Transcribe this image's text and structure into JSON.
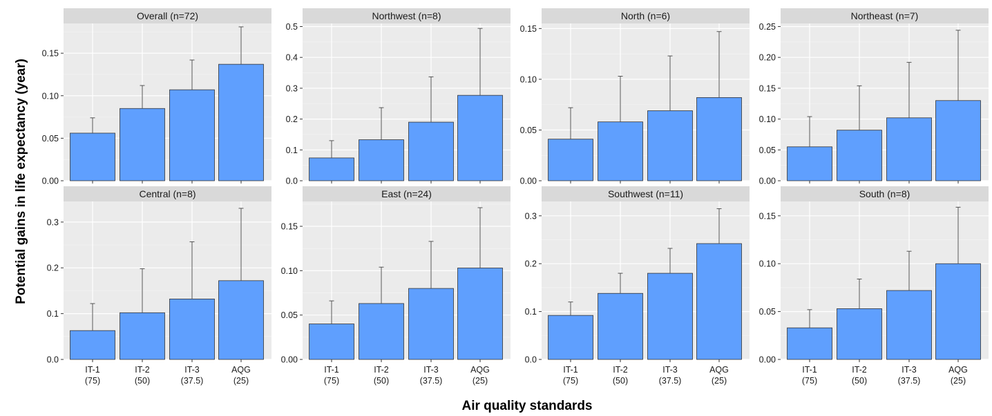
{
  "chart_data": {
    "type": "bar",
    "xlabel": "Air quality standards",
    "ylabel": "Potential gains in life expectancy (year)",
    "categories": [
      "IT-1 (75)",
      "IT-2 (50)",
      "IT-3 (37.5)",
      "AQG (25)"
    ],
    "category_lines": [
      [
        "IT-1",
        "(75)"
      ],
      [
        "IT-2",
        "(50)"
      ],
      [
        "IT-3",
        "(37.5)"
      ],
      [
        "AQG",
        "(25)"
      ]
    ],
    "bar_color": "#5f9ffe",
    "panels": [
      {
        "title": "Overall (n=72)",
        "ylim": [
          0,
          0.185
        ],
        "ticks": [
          0.0,
          0.05,
          0.1,
          0.15
        ],
        "tick_labels": [
          "0.00",
          "0.05",
          "0.10",
          "0.15"
        ],
        "values": [
          0.056,
          0.085,
          0.107,
          0.137
        ],
        "error_upper": [
          0.074,
          0.112,
          0.142,
          0.181
        ]
      },
      {
        "title": "Northwest (n=8)",
        "ylim": [
          0,
          0.51
        ],
        "ticks": [
          0.0,
          0.1,
          0.2,
          0.3,
          0.4,
          0.5
        ],
        "tick_labels": [
          "0.0",
          "0.1",
          "0.2",
          "0.3",
          "0.4",
          "0.5"
        ],
        "values": [
          0.074,
          0.133,
          0.19,
          0.277
        ],
        "error_upper": [
          0.13,
          0.237,
          0.337,
          0.494
        ]
      },
      {
        "title": "North (n=6)",
        "ylim": [
          0,
          0.155
        ],
        "ticks": [
          0.0,
          0.05,
          0.1,
          0.15
        ],
        "tick_labels": [
          "0.00",
          "0.05",
          "0.10",
          "0.15"
        ],
        "values": [
          0.041,
          0.058,
          0.069,
          0.082
        ],
        "error_upper": [
          0.072,
          0.103,
          0.123,
          0.147
        ]
      },
      {
        "title": "Northeast (n=7)",
        "ylim": [
          0,
          0.255
        ],
        "ticks": [
          0.0,
          0.05,
          0.1,
          0.15,
          0.2,
          0.25
        ],
        "tick_labels": [
          "0.00",
          "0.05",
          "0.10",
          "0.15",
          "0.20",
          "0.25"
        ],
        "values": [
          0.055,
          0.082,
          0.102,
          0.13
        ],
        "error_upper": [
          0.104,
          0.154,
          0.192,
          0.244
        ]
      },
      {
        "title": "Central (n=8)",
        "ylim": [
          0,
          0.345
        ],
        "ticks": [
          0.0,
          0.1,
          0.2,
          0.3
        ],
        "tick_labels": [
          "0.0",
          "0.1",
          "0.2",
          "0.3"
        ],
        "values": [
          0.063,
          0.102,
          0.132,
          0.172
        ],
        "error_upper": [
          0.122,
          0.198,
          0.257,
          0.33
        ]
      },
      {
        "title": "East (n=24)",
        "ylim": [
          0,
          0.178
        ],
        "ticks": [
          0.0,
          0.05,
          0.1,
          0.15
        ],
        "tick_labels": [
          "0.00",
          "0.05",
          "0.10",
          "0.15"
        ],
        "values": [
          0.04,
          0.063,
          0.08,
          0.103
        ],
        "error_upper": [
          0.066,
          0.104,
          0.133,
          0.171
        ]
      },
      {
        "title": "Southwest (n=11)",
        "ylim": [
          0,
          0.33
        ],
        "ticks": [
          0.0,
          0.1,
          0.2,
          0.3
        ],
        "tick_labels": [
          "0.0",
          "0.1",
          "0.2",
          "0.3"
        ],
        "values": [
          0.092,
          0.138,
          0.18,
          0.242
        ],
        "error_upper": [
          0.12,
          0.18,
          0.232,
          0.315
        ]
      },
      {
        "title": "South (n=8)",
        "ylim": [
          0,
          0.165
        ],
        "ticks": [
          0.0,
          0.05,
          0.1,
          0.15
        ],
        "tick_labels": [
          "0.00",
          "0.05",
          "0.10",
          "0.15"
        ],
        "values": [
          0.033,
          0.053,
          0.072,
          0.1
        ],
        "error_upper": [
          0.052,
          0.084,
          0.113,
          0.159
        ]
      }
    ]
  }
}
